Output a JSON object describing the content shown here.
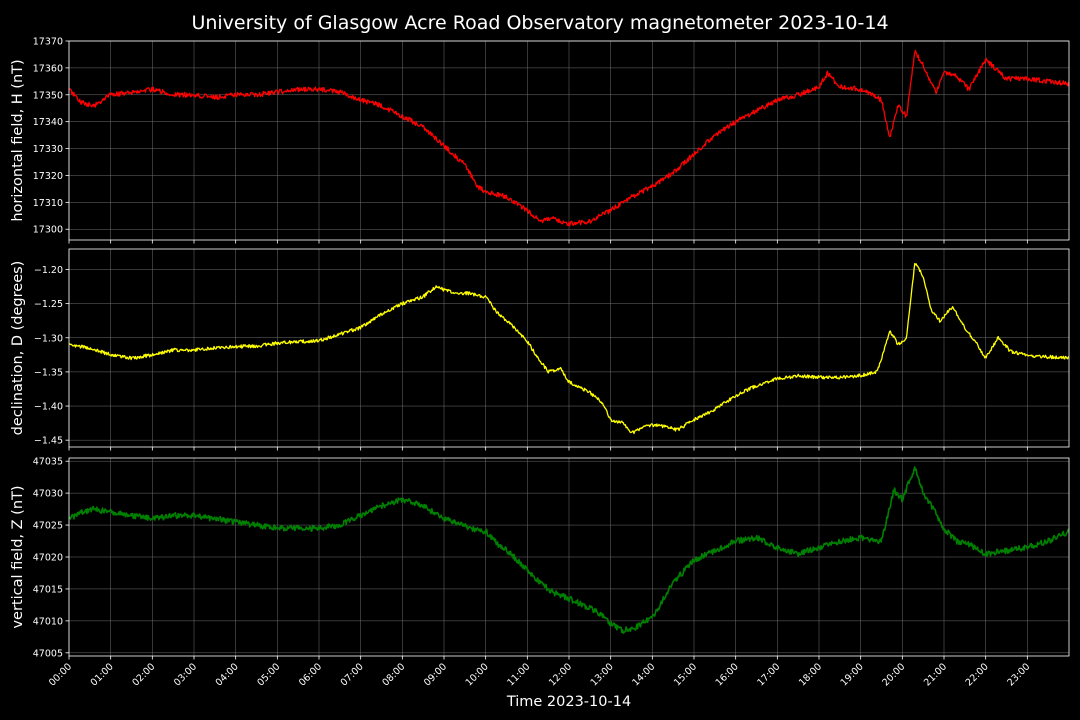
{
  "chart_data": {
    "type": "line",
    "title": "University of Glasgow Acre Road Observatory magnetometer 2023-10-14",
    "xlabel": "Time 2023-10-14",
    "x_ticks": [
      "00:00",
      "01:00",
      "02:00",
      "03:00",
      "04:00",
      "05:00",
      "06:00",
      "07:00",
      "08:00",
      "09:00",
      "10:00",
      "11:00",
      "12:00",
      "13:00",
      "14:00",
      "15:00",
      "16:00",
      "17:00",
      "18:00",
      "19:00",
      "20:00",
      "21:00",
      "22:00",
      "23:00"
    ],
    "xlim_hours": [
      0,
      24
    ],
    "grid": true,
    "panels": [
      {
        "ylabel": "horizontal field, H (nT)",
        "color": "#ff0000",
        "ylim": [
          17296,
          17370
        ],
        "yticks": [
          "17300",
          "17310",
          "17320",
          "17330",
          "17340",
          "17350",
          "17360",
          "17370"
        ],
        "series": {
          "hours": [
            0,
            0.3,
            0.6,
            1,
            1.5,
            2,
            2.5,
            3,
            3.5,
            4,
            4.5,
            5,
            5.5,
            6,
            6.5,
            7,
            7.5,
            8,
            8.5,
            9,
            9.5,
            9.8,
            10,
            10.5,
            11,
            11.3,
            11.6,
            12,
            12.5,
            13,
            13.5,
            14,
            14.5,
            15,
            15.5,
            16,
            16.5,
            17,
            17.5,
            18,
            18.2,
            18.5,
            19,
            19.3,
            19.5,
            19.7,
            19.9,
            20.1,
            20.3,
            20.5,
            20.8,
            21,
            21.3,
            21.6,
            22,
            22.5,
            23,
            23.5,
            24
          ],
          "values": [
            17352,
            17347,
            17346,
            17350,
            17351,
            17352,
            17350,
            17350,
            17349,
            17350,
            17350,
            17351,
            17352,
            17352,
            17351,
            17348,
            17346,
            17342,
            17338,
            17331,
            17324,
            17316,
            17314,
            17312,
            17307,
            17303,
            17304,
            17302,
            17303,
            17307,
            17312,
            17316,
            17321,
            17328,
            17335,
            17340,
            17344,
            17348,
            17350,
            17353,
            17358,
            17353,
            17352,
            17350,
            17348,
            17334,
            17346,
            17342,
            17366,
            17361,
            17351,
            17358,
            17357,
            17352,
            17363,
            17356,
            17356,
            17355,
            17354
          ]
        }
      },
      {
        "ylabel": "declination, D (degrees)",
        "color": "#ffff00",
        "ylim": [
          -1.46,
          -1.17
        ],
        "yticks": [
          "−1.20",
          "−1.25",
          "−1.30",
          "−1.35",
          "−1.40",
          "−1.45"
        ],
        "series": {
          "hours": [
            0,
            0.5,
            1,
            1.5,
            2,
            2.5,
            3,
            3.5,
            4,
            4.5,
            5,
            5.5,
            6,
            6.5,
            7,
            7.5,
            8,
            8.5,
            8.8,
            9,
            9.3,
            9.6,
            10,
            10.3,
            10.6,
            11,
            11.2,
            11.5,
            11.8,
            12,
            12.5,
            12.8,
            13,
            13.3,
            13.5,
            13.8,
            14,
            14.3,
            14.6,
            15,
            15.5,
            16,
            16.5,
            17,
            17.5,
            18,
            18.5,
            19,
            19.4,
            19.7,
            19.9,
            20.1,
            20.3,
            20.5,
            20.7,
            20.9,
            21.2,
            21.5,
            21.8,
            22,
            22.3,
            22.6,
            23,
            23.5,
            24
          ],
          "values": [
            -1.31,
            -1.315,
            -1.325,
            -1.33,
            -1.325,
            -1.318,
            -1.318,
            -1.315,
            -1.313,
            -1.312,
            -1.308,
            -1.306,
            -1.304,
            -1.295,
            -1.285,
            -1.265,
            -1.25,
            -1.24,
            -1.225,
            -1.23,
            -1.235,
            -1.235,
            -1.24,
            -1.265,
            -1.28,
            -1.305,
            -1.325,
            -1.35,
            -1.345,
            -1.365,
            -1.38,
            -1.395,
            -1.42,
            -1.425,
            -1.44,
            -1.43,
            -1.428,
            -1.43,
            -1.435,
            -1.42,
            -1.405,
            -1.385,
            -1.37,
            -1.36,
            -1.356,
            -1.358,
            -1.358,
            -1.355,
            -1.35,
            -1.29,
            -1.31,
            -1.3,
            -1.19,
            -1.21,
            -1.26,
            -1.275,
            -1.255,
            -1.285,
            -1.31,
            -1.33,
            -1.3,
            -1.32,
            -1.326,
            -1.328,
            -1.33
          ]
        }
      },
      {
        "ylabel": "vertical field, Z (nT)",
        "color": "#008000",
        "ylim": [
          47004.5,
          47035.5
        ],
        "yticks": [
          "47005",
          "47010",
          "47015",
          "47020",
          "47025",
          "47030",
          "47035"
        ],
        "series": {
          "hours": [
            0,
            0.3,
            0.6,
            1,
            1.5,
            2,
            2.5,
            3,
            3.5,
            4,
            4.5,
            5,
            5.5,
            6,
            6.5,
            7,
            7.5,
            8,
            8.5,
            9,
            9.3,
            9.6,
            10,
            10.3,
            10.6,
            11,
            11.3,
            11.6,
            12,
            12.5,
            12.8,
            13,
            13.3,
            13.6,
            14,
            14.5,
            15,
            15.5,
            16,
            16.5,
            17,
            17.5,
            18,
            18.5,
            19,
            19.5,
            19.8,
            20,
            20.3,
            20.5,
            20.7,
            21,
            21.3,
            21.6,
            22,
            22.5,
            23,
            23.5,
            24
          ],
          "values": [
            47026,
            47027,
            47027.5,
            47027,
            47026.5,
            47026,
            47026.5,
            47026.5,
            47026,
            47025.5,
            47025,
            47024.5,
            47024.5,
            47024.5,
            47025,
            47026.5,
            47028,
            47029,
            47028,
            47026,
            47025.5,
            47024.5,
            47024,
            47022,
            47020.5,
            47018,
            47016,
            47014.5,
            47013.5,
            47012,
            47011,
            47009.5,
            47008.5,
            47009,
            47010.5,
            47016,
            47019.5,
            47021,
            47022.5,
            47023,
            47021.5,
            47020.5,
            47021.5,
            47022.5,
            47023,
            47022.5,
            47030.5,
            47029,
            47034,
            47030,
            47028,
            47024.5,
            47022.5,
            47022,
            47020.5,
            47021,
            47021.5,
            47022.5,
            47024
          ]
        }
      }
    ]
  }
}
